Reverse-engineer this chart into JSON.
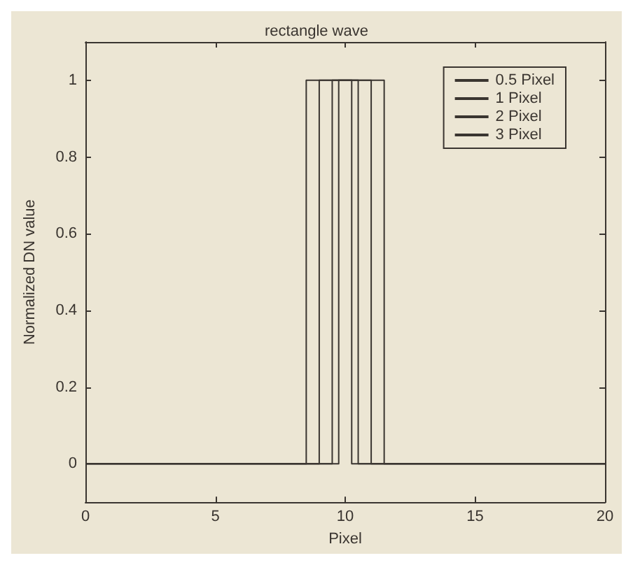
{
  "chart_data": {
    "type": "line",
    "title": "rectangle wave",
    "xlabel": "Pixel",
    "ylabel": "Normalized DN value",
    "xlim": [
      0,
      20
    ],
    "xticks": [
      0,
      5,
      10,
      15,
      20
    ],
    "ylim": [
      -0.1,
      1.1
    ],
    "yticks": [
      0,
      0.2,
      0.4,
      0.6,
      0.8,
      1
    ],
    "grid": false,
    "legend": "top right",
    "marker": "none",
    "line_style": "solid",
    "series": [
      {
        "name": "0.5 Pixel",
        "color": "#3a3530",
        "x": [
          0,
          9.75,
          9.75,
          10.25,
          10.25,
          20
        ],
        "values": [
          0,
          0,
          1,
          1,
          0,
          0
        ]
      },
      {
        "name": "1 Pixel",
        "color": "#3a3530",
        "x": [
          0,
          9.5,
          9.5,
          10.5,
          10.5,
          20
        ],
        "values": [
          0,
          0,
          1,
          1,
          0,
          0
        ]
      },
      {
        "name": "2 Pixel",
        "color": "#3a3530",
        "x": [
          0,
          9,
          9,
          11,
          11,
          20
        ],
        "values": [
          0,
          0,
          1,
          1,
          0,
          0
        ]
      },
      {
        "name": "3 Pixel",
        "color": "#3a3530",
        "x": [
          0,
          8.5,
          8.5,
          11.5,
          11.5,
          20
        ],
        "values": [
          0,
          0,
          1,
          1,
          0,
          0
        ]
      }
    ]
  }
}
